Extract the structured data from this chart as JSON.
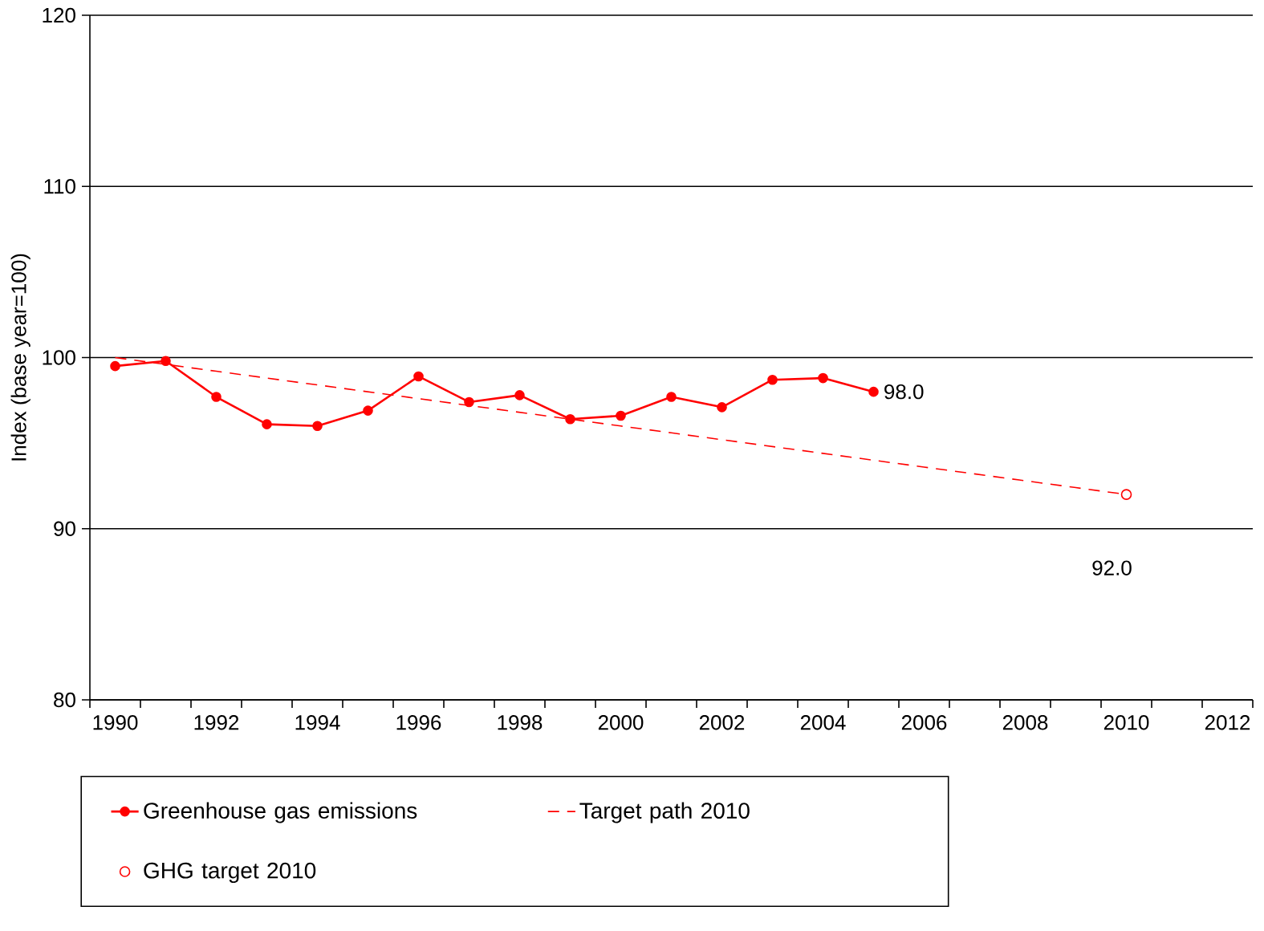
{
  "chart_data": {
    "type": "line",
    "ylabel": "Index (base year=100)",
    "categories": [
      "1990",
      null,
      "1992",
      null,
      "1994",
      null,
      "1996",
      null,
      "1998",
      null,
      "2000",
      null,
      "2002",
      null,
      "2004",
      null,
      "2006",
      null,
      "2008",
      null,
      "2010",
      null,
      "2012"
    ],
    "ylim": [
      80,
      120
    ],
    "yticks": [
      80,
      90,
      100,
      110,
      120
    ],
    "grid": "y",
    "legend": "bottom",
    "series": [
      {
        "name": "Greenhouse gas emissions",
        "color": "#ff0000",
        "marker": "circle",
        "line_style": "solid",
        "values": [
          99.5,
          99.8,
          97.7,
          96.1,
          96.0,
          96.9,
          98.9,
          97.4,
          97.8,
          96.4,
          96.6,
          97.7,
          97.1,
          98.7,
          98.8,
          98.0,
          null,
          null,
          null,
          null,
          null,
          null,
          null
        ]
      },
      {
        "name": "Target path 2010",
        "color": "#ff0000",
        "marker": "none",
        "line_style": "dashed",
        "values": [
          100,
          99.6,
          99.2,
          98.8,
          98.4,
          98.0,
          97.6,
          97.2,
          96.8,
          96.4,
          96.0,
          95.6,
          95.2,
          94.8,
          94.4,
          94.0,
          93.6,
          93.2,
          92.8,
          92.4,
          92.0,
          null,
          null
        ]
      },
      {
        "name": "GHG target 2010",
        "color": "#ff0000",
        "type": "scatter",
        "marker": "circle",
        "values": [
          null,
          null,
          null,
          null,
          null,
          null,
          null,
          null,
          null,
          null,
          null,
          null,
          null,
          null,
          null,
          null,
          null,
          null,
          null,
          null,
          92,
          null,
          null
        ]
      }
    ],
    "annotations": [
      "98.0",
      "92.0"
    ]
  }
}
